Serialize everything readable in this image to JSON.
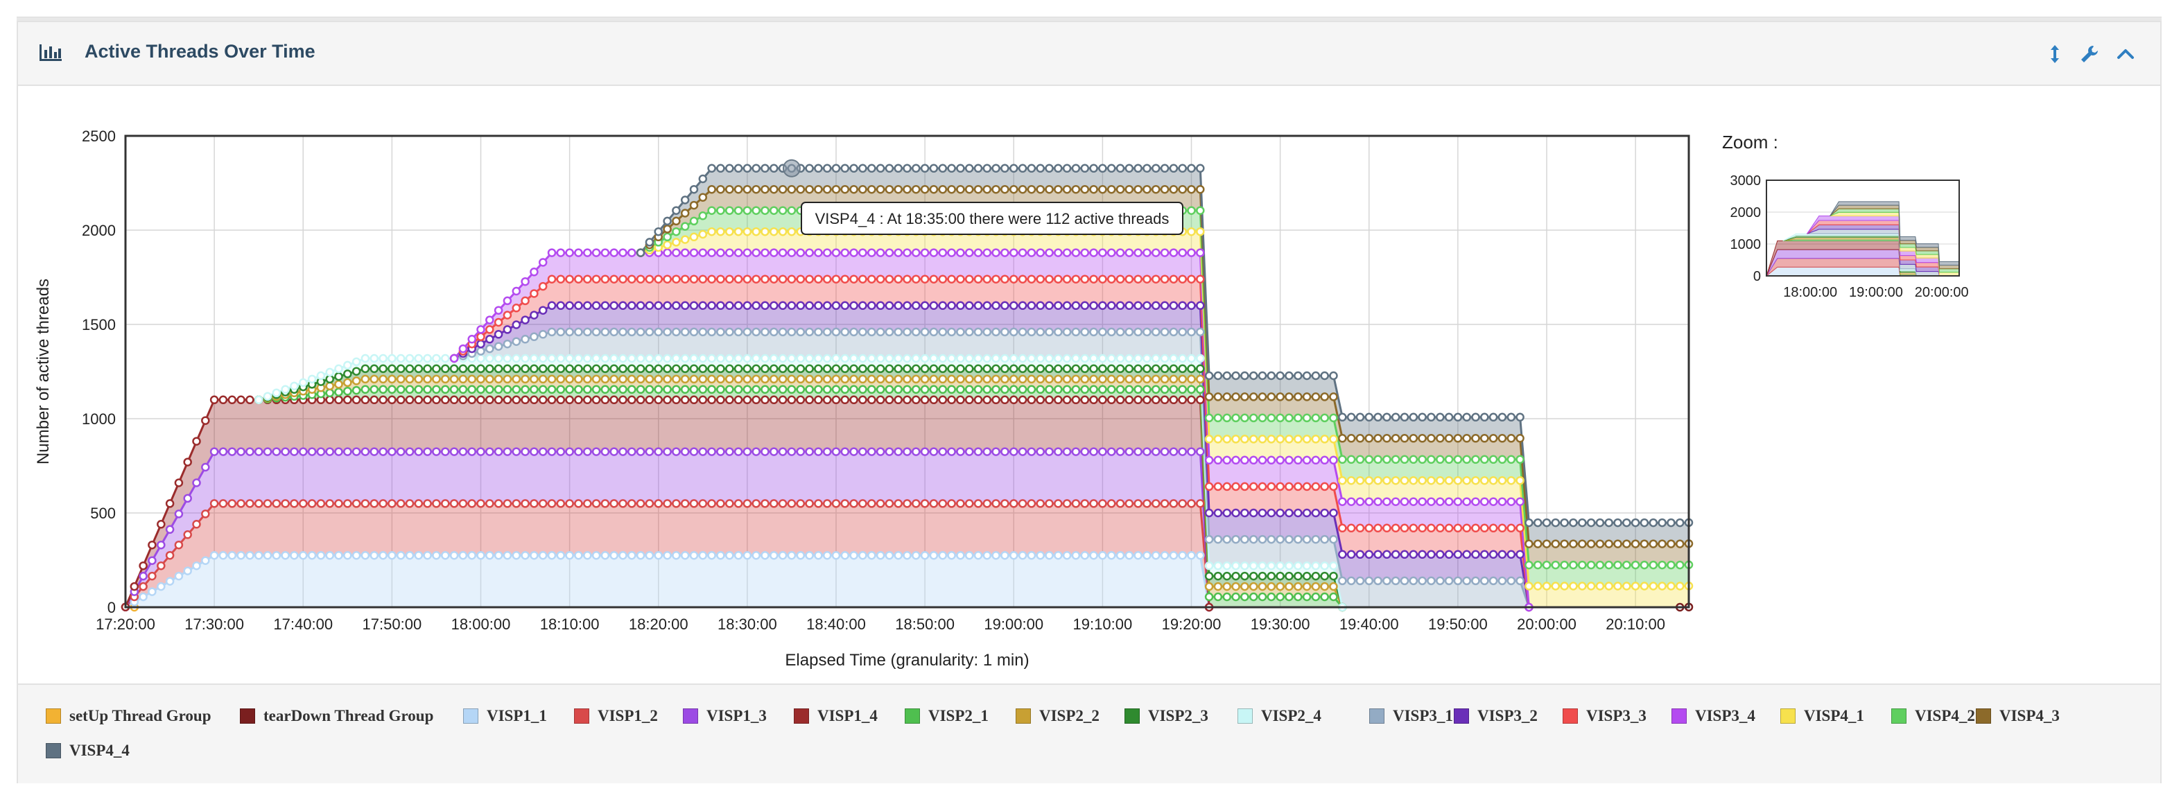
{
  "panel": {
    "title": "Active Threads Over Time"
  },
  "toolbar": {
    "icons": [
      "vertical-resize-icon",
      "wrench-icon",
      "chevron-up-icon"
    ]
  },
  "zoom": {
    "label": "Zoom :",
    "yticks": [
      "0",
      "1000",
      "2000",
      "3000"
    ],
    "xticks": [
      "18:00:00",
      "19:00:00",
      "20:00:00"
    ]
  },
  "tooltip": {
    "text": "VISP4_4 : At 18:35:00 there were 112 active threads"
  },
  "colors": {
    "setUp Thread Group": "#f2b233",
    "tearDown Thread Group": "#7a1f1f",
    "VISP1_1": "#b5d6f6",
    "VISP1_2": "#d84a4a",
    "VISP1_3": "#9c4be4",
    "VISP1_4": "#9b2c2c",
    "VISP2_1": "#4fbf4f",
    "VISP2_2": "#c8a033",
    "VISP2_3": "#2f8a2f",
    "VISP2_4": "#c8f6f6",
    "VISP3_1": "#93abc4",
    "VISP3_2": "#6a2fb8",
    "VISP3_3": "#f04d4d",
    "VISP3_4": "#b44bf0",
    "VISP4_1": "#f7e14d",
    "VISP4_2": "#5fcf5f",
    "VISP4_3": "#8c6a2a",
    "VISP4_4": "#5f7282"
  },
  "chart_data": {
    "type": "area",
    "title": "Active Threads Over Time",
    "xlabel": "Elapsed Time (granularity: 1 min)",
    "ylabel": "Number of active threads",
    "ylim": [
      0,
      2500
    ],
    "xlim": [
      "17:20:00",
      "20:16:00"
    ],
    "stacked": true,
    "grid": true,
    "legend_position": "bottom",
    "xticks": [
      "17:20:00",
      "17:30:00",
      "17:40:00",
      "17:50:00",
      "18:00:00",
      "18:10:00",
      "18:20:00",
      "18:30:00",
      "18:40:00",
      "18:50:00",
      "19:00:00",
      "19:10:00",
      "19:20:00",
      "19:30:00",
      "19:40:00",
      "19:50:00",
      "20:00:00",
      "20:10:00"
    ],
    "yticks": [
      "0",
      "500",
      "1000",
      "1500",
      "2000",
      "2500"
    ],
    "series": [
      {
        "name": "setUp Thread Group",
        "points": [
          [
            "17:20:00",
            1
          ],
          [
            "17:21:00",
            0
          ]
        ]
      },
      {
        "name": "tearDown Thread Group",
        "points": [
          [
            "20:15:00",
            0
          ],
          [
            "20:16:00",
            1
          ]
        ]
      },
      {
        "name": "VISP1_1",
        "points": [
          [
            "17:20:00",
            0
          ],
          [
            "17:30:00",
            275
          ],
          [
            "19:21:00",
            275
          ],
          [
            "19:22:00",
            0
          ]
        ]
      },
      {
        "name": "VISP1_2",
        "points": [
          [
            "17:20:00",
            0
          ],
          [
            "17:30:00",
            275
          ],
          [
            "19:21:00",
            275
          ],
          [
            "19:22:00",
            0
          ]
        ]
      },
      {
        "name": "VISP1_3",
        "points": [
          [
            "17:20:00",
            0
          ],
          [
            "17:30:00",
            275
          ],
          [
            "19:21:00",
            275
          ],
          [
            "19:22:00",
            0
          ]
        ]
      },
      {
        "name": "VISP1_4",
        "points": [
          [
            "17:20:00",
            0
          ],
          [
            "17:30:00",
            275
          ],
          [
            "19:21:00",
            275
          ],
          [
            "19:22:00",
            0
          ]
        ]
      },
      {
        "name": "VISP2_1",
        "points": [
          [
            "17:35:00",
            0
          ],
          [
            "17:47:00",
            55
          ],
          [
            "19:36:00",
            55
          ],
          [
            "19:37:00",
            0
          ]
        ]
      },
      {
        "name": "VISP2_2",
        "points": [
          [
            "17:35:00",
            0
          ],
          [
            "17:47:00",
            55
          ],
          [
            "19:36:00",
            55
          ],
          [
            "19:37:00",
            0
          ]
        ]
      },
      {
        "name": "VISP2_3",
        "points": [
          [
            "17:35:00",
            0
          ],
          [
            "17:47:00",
            55
          ],
          [
            "19:36:00",
            55
          ],
          [
            "19:37:00",
            0
          ]
        ]
      },
      {
        "name": "VISP2_4",
        "points": [
          [
            "17:35:00",
            0
          ],
          [
            "17:47:00",
            55
          ],
          [
            "19:36:00",
            55
          ],
          [
            "19:37:00",
            0
          ]
        ]
      },
      {
        "name": "VISP3_1",
        "points": [
          [
            "17:57:00",
            0
          ],
          [
            "18:08:00",
            140
          ],
          [
            "19:57:00",
            140
          ],
          [
            "19:58:00",
            0
          ]
        ]
      },
      {
        "name": "VISP3_2",
        "points": [
          [
            "17:57:00",
            0
          ],
          [
            "18:08:00",
            140
          ],
          [
            "19:57:00",
            140
          ],
          [
            "19:58:00",
            0
          ]
        ]
      },
      {
        "name": "VISP3_3",
        "points": [
          [
            "17:57:00",
            0
          ],
          [
            "18:08:00",
            140
          ],
          [
            "19:57:00",
            140
          ],
          [
            "19:58:00",
            0
          ]
        ]
      },
      {
        "name": "VISP3_4",
        "points": [
          [
            "17:57:00",
            0
          ],
          [
            "18:08:00",
            140
          ],
          [
            "19:57:00",
            140
          ],
          [
            "19:58:00",
            0
          ]
        ]
      },
      {
        "name": "VISP4_1",
        "points": [
          [
            "18:18:00",
            0
          ],
          [
            "18:26:00",
            112
          ],
          [
            "20:16:00",
            112
          ]
        ]
      },
      {
        "name": "VISP4_2",
        "points": [
          [
            "18:18:00",
            0
          ],
          [
            "18:26:00",
            112
          ],
          [
            "20:16:00",
            112
          ]
        ]
      },
      {
        "name": "VISP4_3",
        "points": [
          [
            "18:18:00",
            0
          ],
          [
            "18:26:00",
            112
          ],
          [
            "20:16:00",
            112
          ]
        ]
      },
      {
        "name": "VISP4_4",
        "points": [
          [
            "18:18:00",
            0
          ],
          [
            "18:26:00",
            112
          ],
          [
            "20:16:00",
            112
          ]
        ]
      }
    ]
  }
}
